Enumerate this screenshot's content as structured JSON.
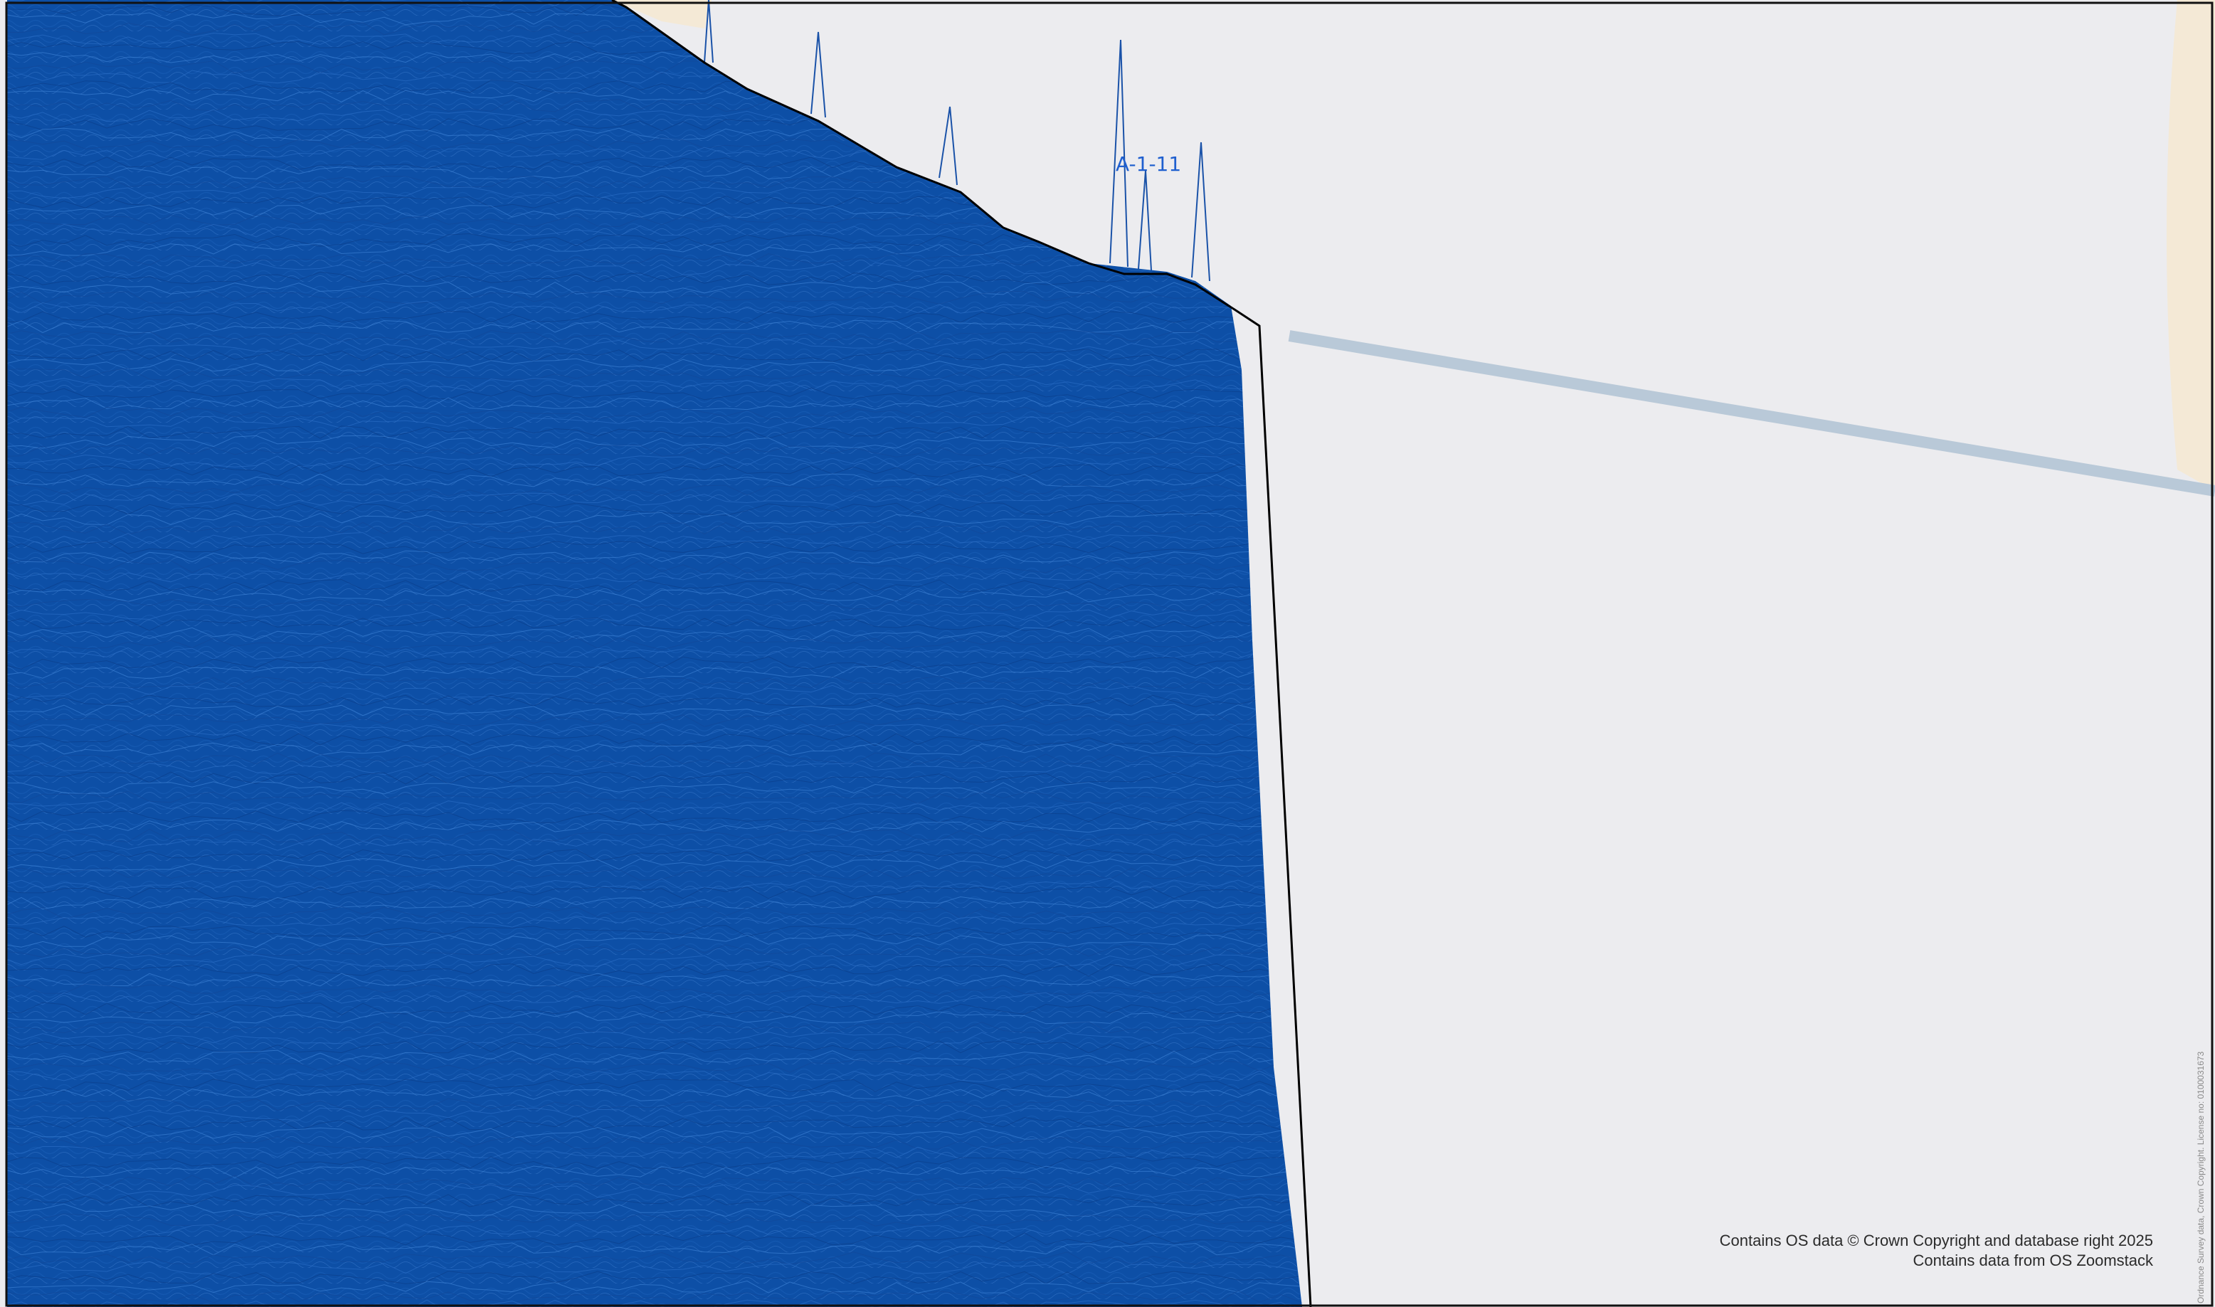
{
  "map": {
    "colors": {
      "background": "#ececef",
      "land_tint": "#f4e9d6",
      "road": "#b9c9d8",
      "boundary": "#000000",
      "contours": "#0d4fa6",
      "label": "#1f5fcf"
    },
    "layers": {
      "contour_fill": "dense-contour-lines",
      "boundary": "site-boundary-polygon",
      "road": "road-segment"
    },
    "site_label": "A-1-11",
    "attribution": {
      "line1": "Contains OS data © Crown Copyright and database right 2025",
      "line2": "Contains data from OS Zoomstack"
    },
    "side_attribution": "Ordnance Survey data, Crown Copyright. License no: 0100031673"
  }
}
